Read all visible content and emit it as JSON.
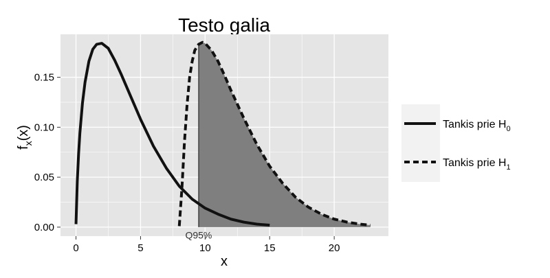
{
  "chart_data": {
    "type": "line",
    "title": "Testo galia",
    "xlabel": "x",
    "ylabel": {
      "base": "f",
      "sub": "x",
      "rest": "(x)"
    },
    "xlim": [
      -1.2,
      24.2
    ],
    "ylim": [
      -0.009,
      0.193
    ],
    "x_ticks": [
      0,
      5,
      10,
      15,
      20
    ],
    "y_ticks": [
      0.0,
      0.05,
      0.1,
      0.15
    ],
    "y_tick_labels": [
      "0.00",
      "0.05",
      "0.10",
      "0.15"
    ],
    "grid": true,
    "legend_position": "right",
    "colors": {
      "panel": "#e5e5e5",
      "grid": "#ffffff",
      "line": "#111111",
      "shade": "#7f7f7f",
      "legend_bg": "#f2f2f2"
    },
    "series": [
      {
        "label_base": "Tankis prie H",
        "label_sub": "0",
        "line_style": "solid",
        "x": [
          0,
          0.1,
          0.2,
          0.3,
          0.5,
          0.7,
          1.0,
          1.3,
          1.6,
          2.0,
          2.5,
          3.0,
          3.5,
          4.0,
          5.0,
          6.0,
          7.0,
          8.0,
          9.0,
          10.0,
          11.0,
          12.0,
          13.0,
          14.0,
          15.0
        ],
        "y": [
          0.003,
          0.046,
          0.073,
          0.094,
          0.124,
          0.145,
          0.166,
          0.178,
          0.183,
          0.184,
          0.179,
          0.167,
          0.153,
          0.138,
          0.108,
          0.081,
          0.059,
          0.041,
          0.028,
          0.019,
          0.013,
          0.008,
          0.005,
          0.003,
          0.002
        ]
      },
      {
        "label_base": "Tankis prie H",
        "label_sub": "1",
        "line_style": "dashed",
        "x": [
          8.0,
          8.2,
          8.4,
          8.6,
          8.8,
          9.0,
          9.2,
          9.5,
          9.8,
          10.0,
          10.5,
          11.0,
          11.5,
          12.0,
          13.0,
          14.0,
          15.0,
          16.0,
          17.0,
          18.0,
          19.0,
          20.0,
          21.0,
          22.0,
          22.8
        ],
        "y": [
          0.001,
          0.038,
          0.085,
          0.122,
          0.15,
          0.166,
          0.177,
          0.183,
          0.185,
          0.184,
          0.177,
          0.166,
          0.152,
          0.137,
          0.109,
          0.083,
          0.061,
          0.044,
          0.03,
          0.02,
          0.013,
          0.008,
          0.005,
          0.003,
          0.002
        ]
      }
    ],
    "shaded_region": {
      "series": 1,
      "from_x": 9.5
    },
    "annotations": [
      {
        "text": "Q95%",
        "x": 9.5,
        "y": -0.003
      }
    ]
  }
}
